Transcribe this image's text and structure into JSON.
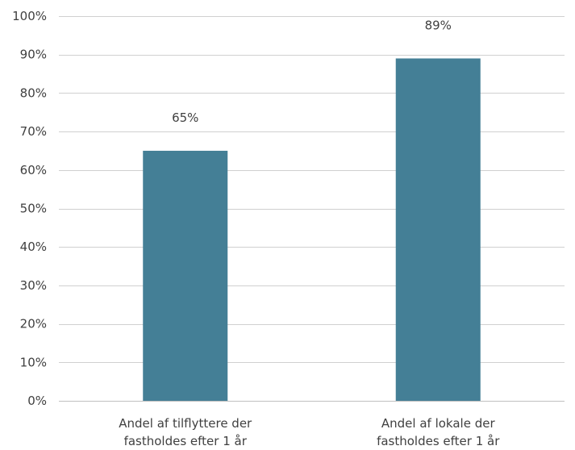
{
  "chart_data": {
    "type": "bar",
    "categories": [
      [
        "Andel af tilflyttere der",
        "fastholdes efter 1 år"
      ],
      [
        "Andel af lokale der",
        "fastholdes efter 1 år"
      ]
    ],
    "values": [
      0.65,
      0.89
    ],
    "data_labels": [
      "65%",
      "89%"
    ],
    "ylim": [
      0,
      1
    ],
    "yticks": [
      0,
      0.1,
      0.2,
      0.3,
      0.4,
      0.5,
      0.6,
      0.7,
      0.8,
      0.9,
      1.0
    ],
    "ytick_labels": [
      "0%",
      "10%",
      "20%",
      "30%",
      "40%",
      "50%",
      "60%",
      "70%",
      "80%",
      "90%",
      "100%"
    ],
    "grid": true,
    "legend": "none",
    "bar_color": "#447f96"
  }
}
